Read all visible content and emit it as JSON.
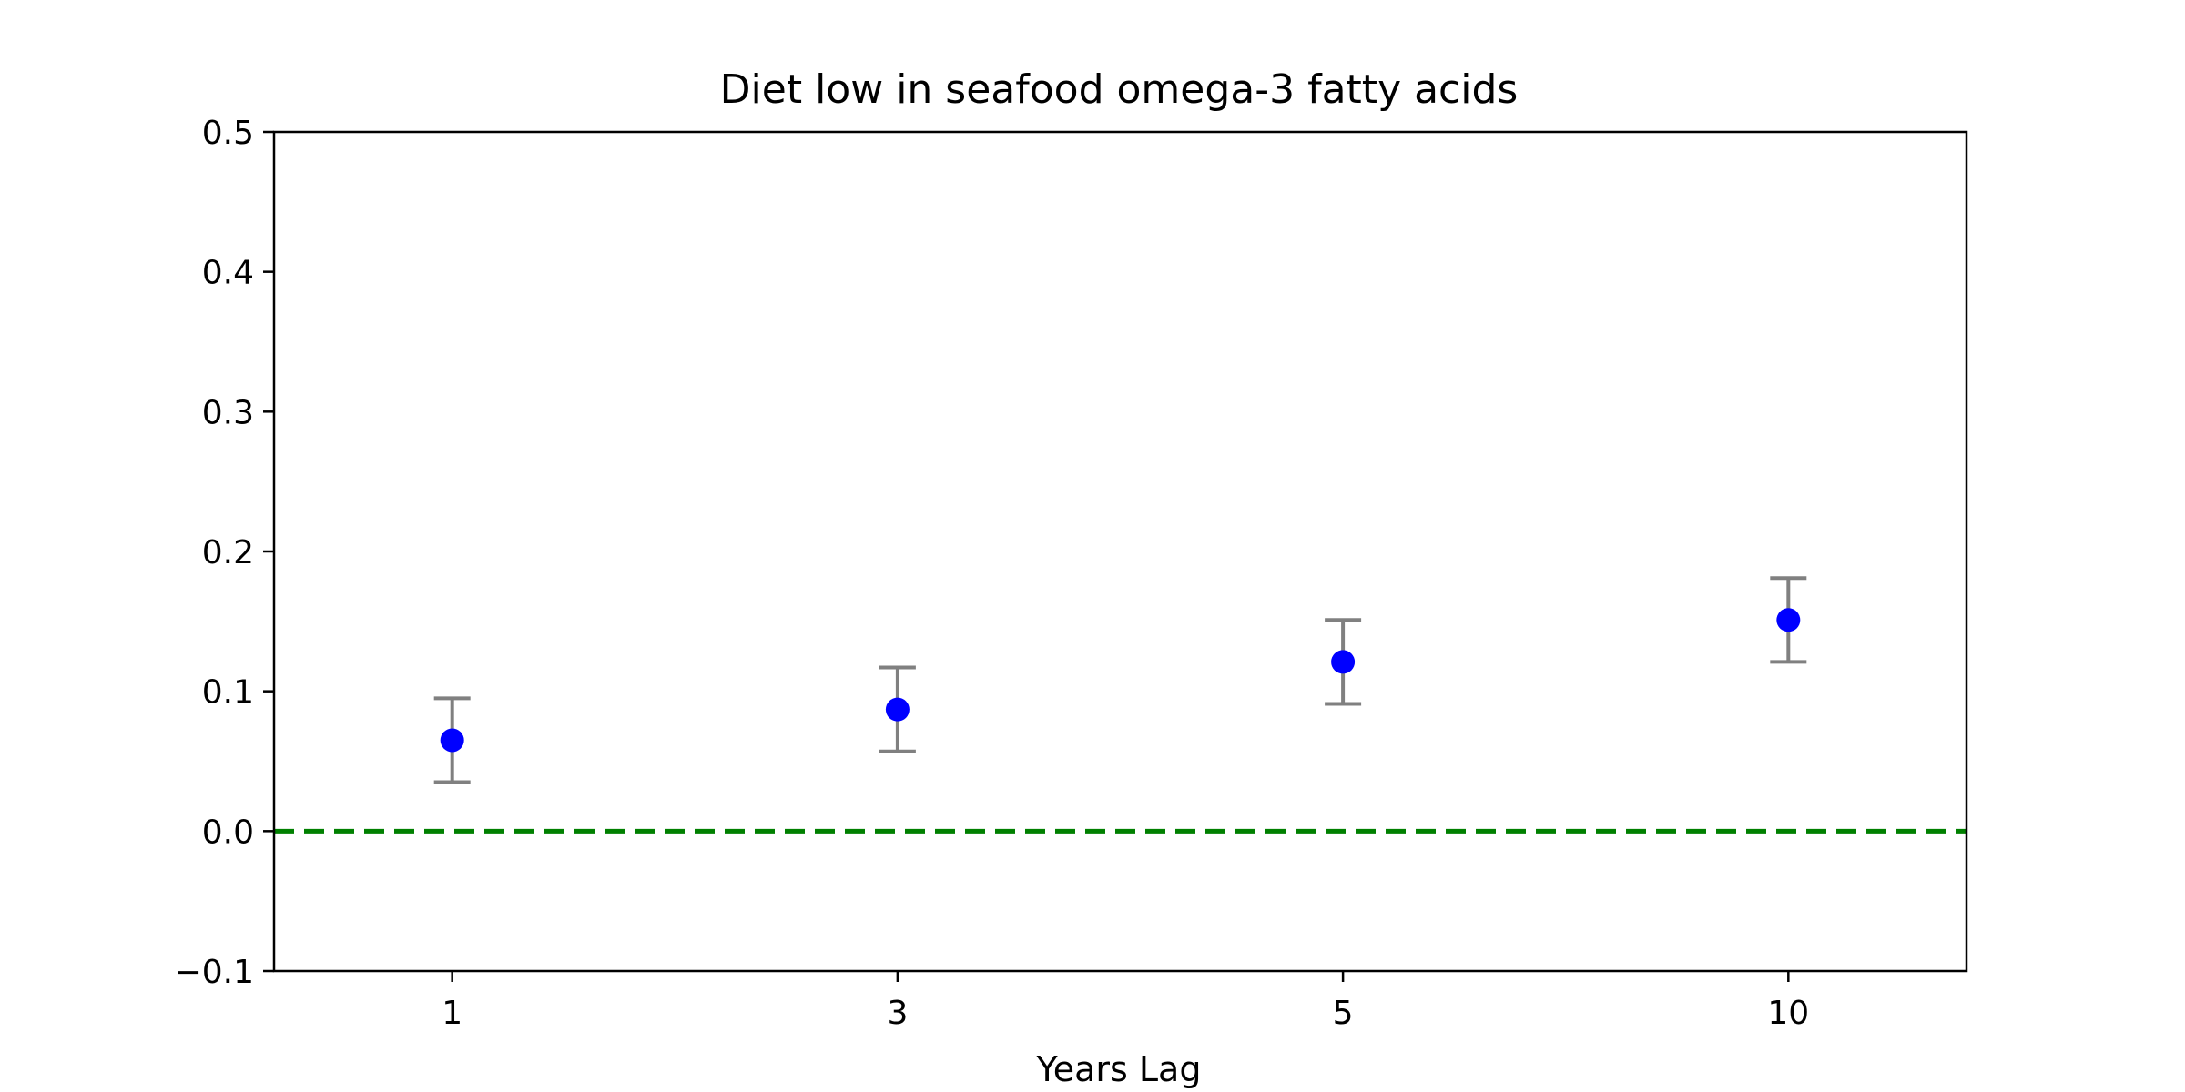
{
  "chart_data": {
    "type": "scatter",
    "title": "Diet low in seafood omega-3 fatty acids",
    "xlabel": "Years Lag",
    "ylabel": "",
    "categories": [
      "1",
      "3",
      "5",
      "10"
    ],
    "series": [
      {
        "values": [
          0.065,
          0.087,
          0.121,
          0.151
        ],
        "error_low": [
          0.035,
          0.057,
          0.091,
          0.121
        ],
        "error_high": [
          0.095,
          0.117,
          0.151,
          0.181
        ]
      }
    ],
    "reference_line": {
      "y": 0.0,
      "style": "dashed",
      "color": "#008000"
    },
    "ylim": [
      -0.1,
      0.5
    ],
    "yticks": [
      -0.1,
      0.0,
      0.1,
      0.2,
      0.3,
      0.4,
      0.5
    ],
    "ytick_labels": [
      "−0.1",
      "0.0",
      "0.1",
      "0.2",
      "0.3",
      "0.4",
      "0.5"
    ],
    "grid": false,
    "colors": {
      "point": "#0000ff",
      "errorbar": "#808080",
      "reference": "#008000",
      "axes": "#000000"
    }
  }
}
